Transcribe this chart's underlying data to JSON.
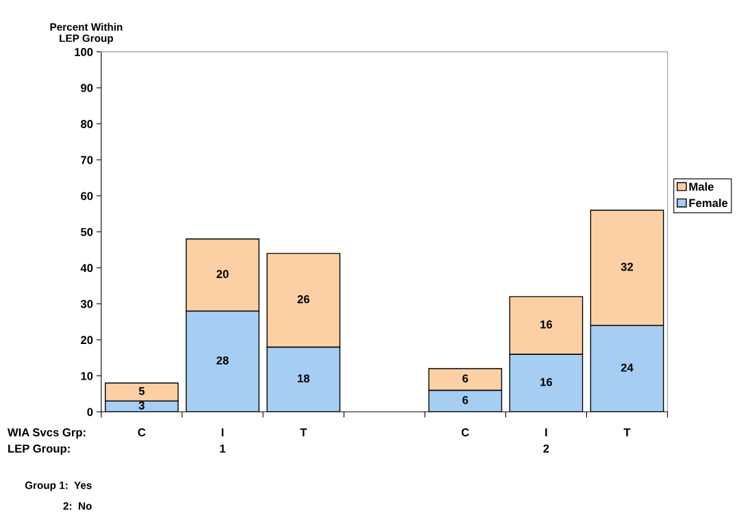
{
  "chart_data": {
    "type": "bar",
    "stacked": true,
    "ylabel": "Percent Within\nLEP Group",
    "categories": [
      "C",
      "I",
      "T",
      null,
      "C",
      "I",
      "T"
    ],
    "series": [
      {
        "name": "Female",
        "color": "#a6cdf2",
        "values": [
          3,
          28,
          18,
          null,
          6,
          16,
          24
        ]
      },
      {
        "name": "Male",
        "color": "#fcd0a4",
        "values": [
          5,
          20,
          26,
          null,
          6,
          16,
          32
        ]
      }
    ],
    "ylim": [
      0,
      100
    ],
    "yticks": [
      0,
      10,
      20,
      30,
      40,
      50,
      60,
      70,
      80,
      90,
      100
    ],
    "data_labels": true,
    "grid": false,
    "legend": "right",
    "annotations": [
      "WIA Svcs Grp:",
      "LEP Group:",
      "1",
      "2",
      "Group 1:  Yes",
      "2:  No"
    ]
  }
}
